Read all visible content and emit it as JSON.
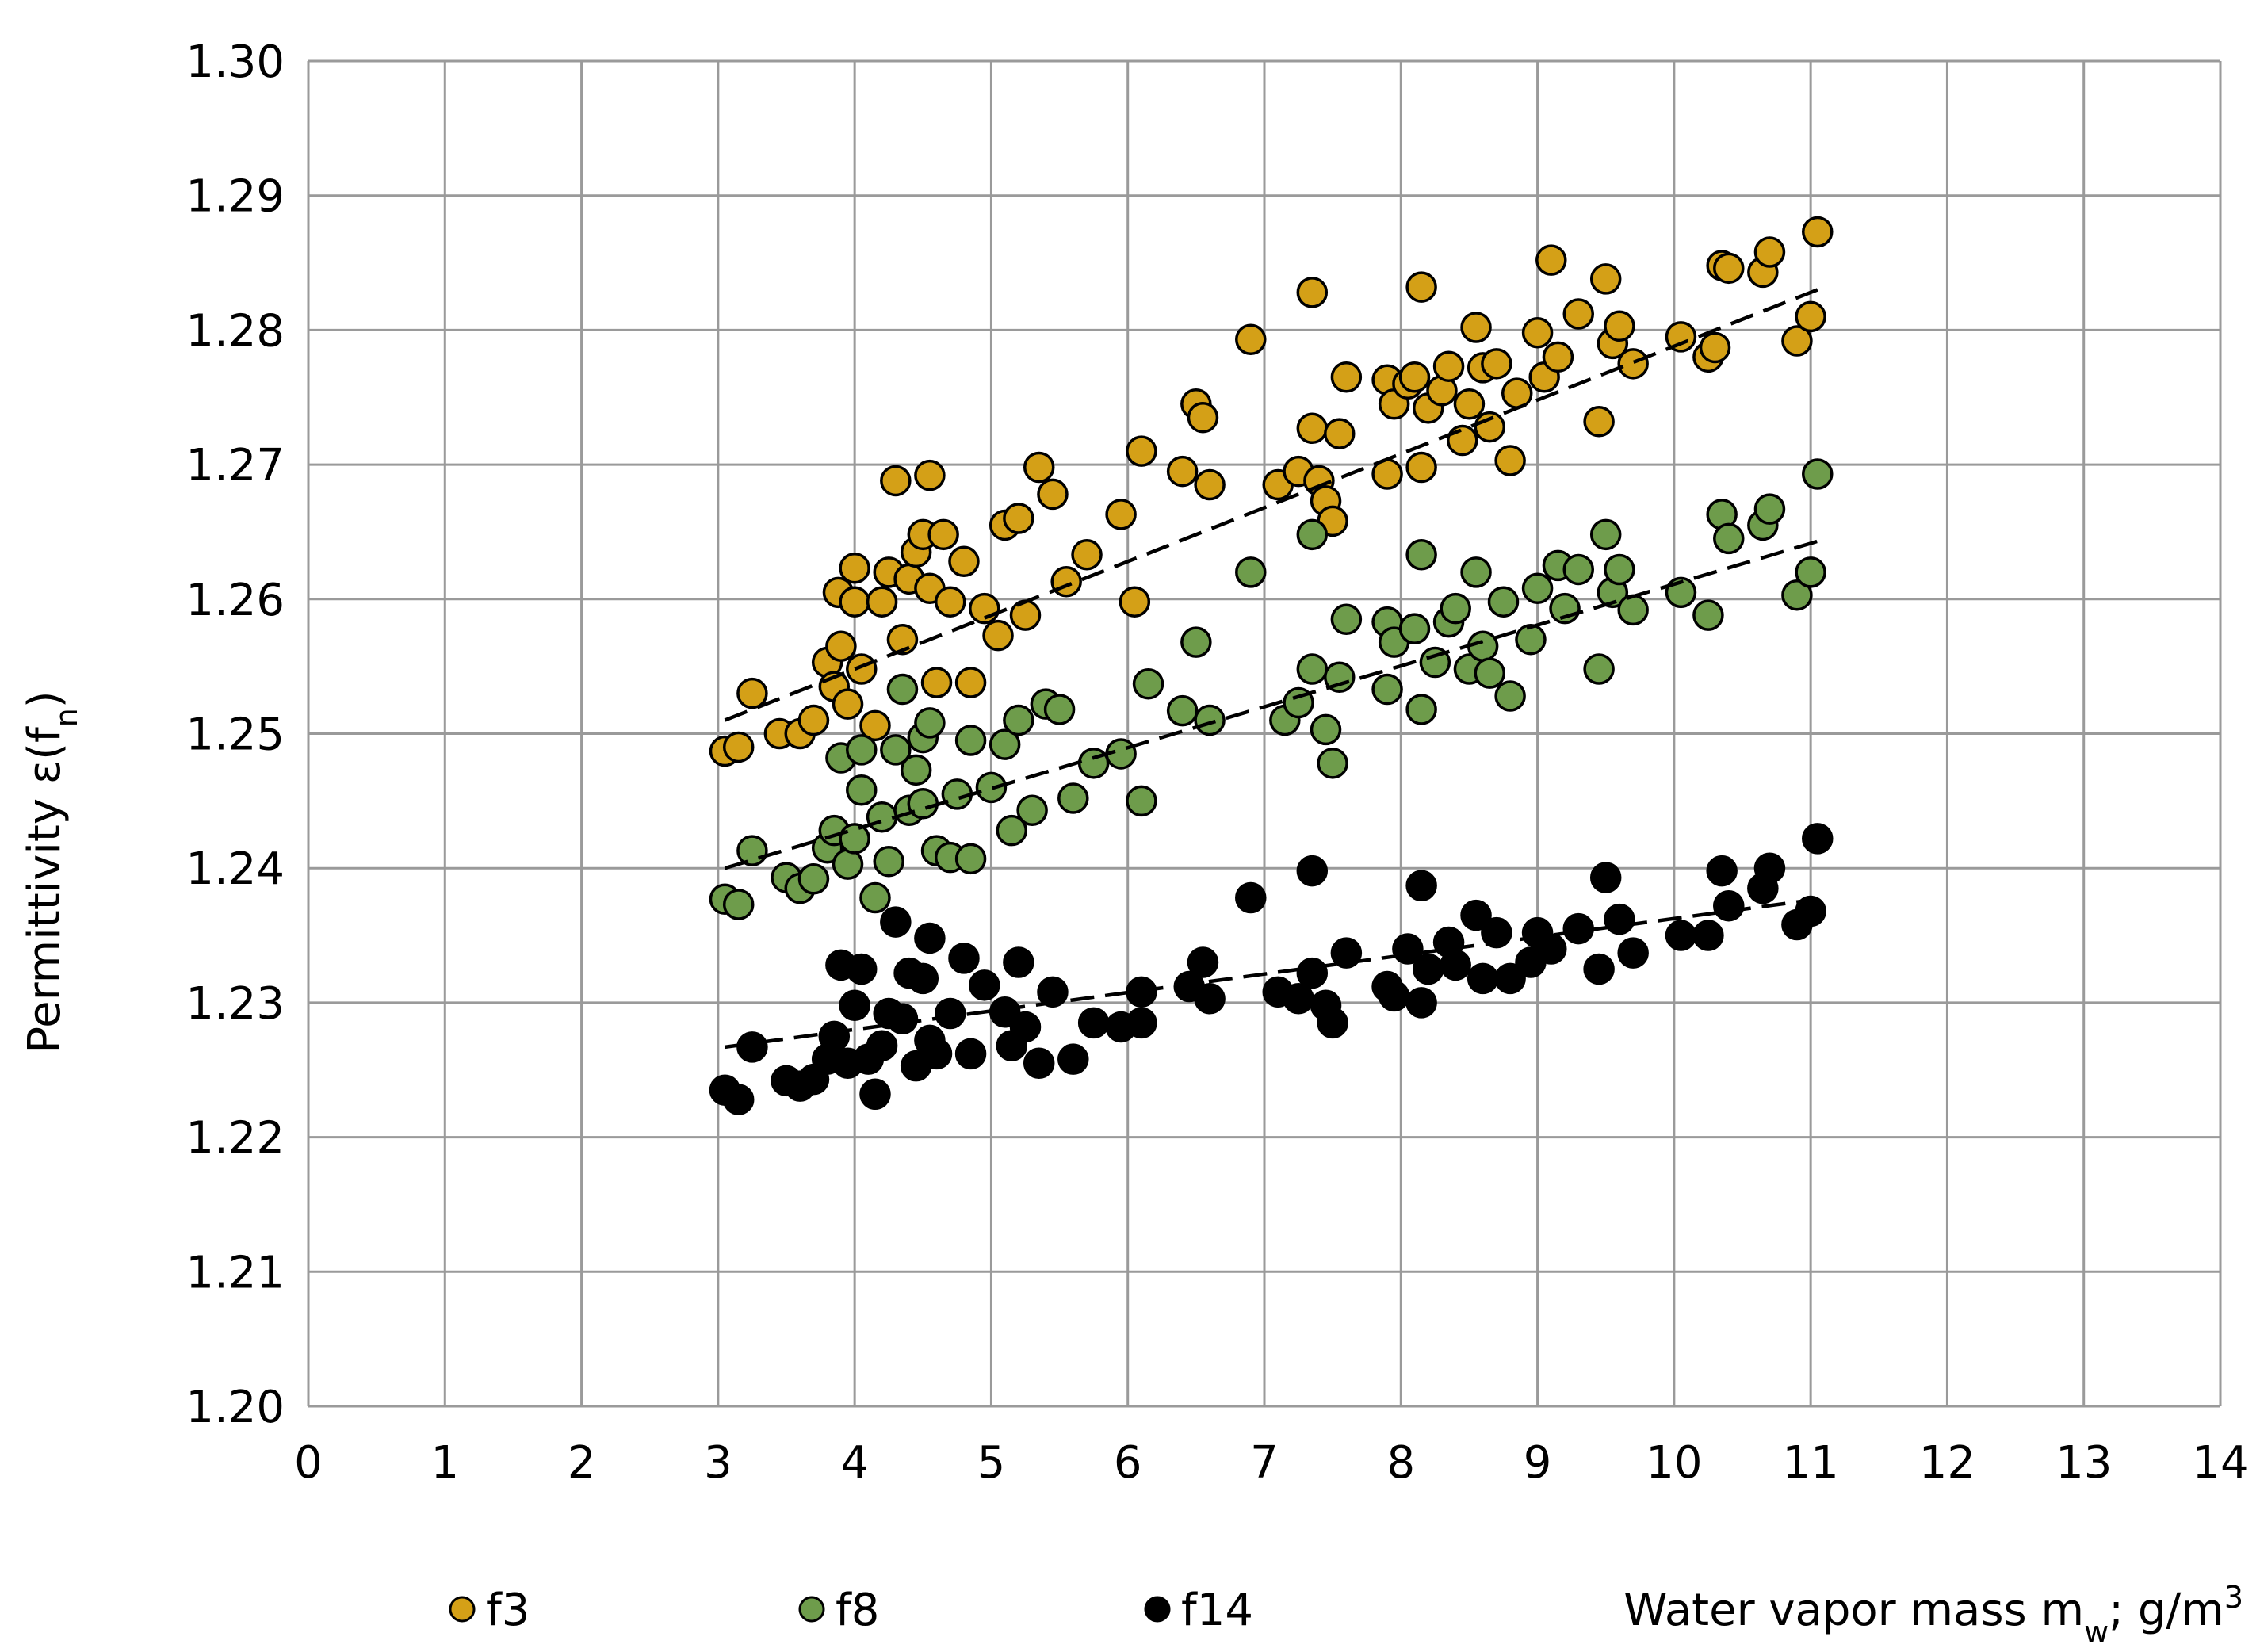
{
  "chart_data": {
    "type": "scatter",
    "ylabel": [
      "Permittivity ε(f",
      "n",
      ")"
    ],
    "xlabel": [
      "Water vapor mass m",
      "w",
      "; g/m",
      "3"
    ],
    "xlim": [
      0,
      14
    ],
    "xticks": [
      0,
      1,
      2,
      3,
      4,
      5,
      6,
      7,
      8,
      9,
      10,
      11,
      12,
      13,
      14
    ],
    "ylim": [
      1.2,
      1.3
    ],
    "yticks": [
      {
        "value": 1.2,
        "label": "1.20"
      },
      1.21,
      1.22,
      1.23,
      1.24,
      1.25,
      1.26,
      1.27,
      1.28,
      1.29,
      {
        "value": 1.3,
        "label": "1.30"
      }
    ],
    "grid": true,
    "legend": "bottom",
    "series": [
      {
        "name": "f3",
        "color": "#d4a017",
        "x": [
          3.05,
          3.15,
          3.25,
          3.45,
          3.6,
          3.7,
          3.8,
          3.85,
          3.88,
          3.9,
          3.95,
          4.0,
          4.0,
          4.05,
          4.15,
          4.2,
          4.25,
          4.3,
          4.35,
          4.4,
          4.45,
          4.5,
          4.55,
          4.55,
          4.6,
          4.65,
          4.7,
          4.8,
          4.85,
          4.95,
          5.05,
          5.1,
          5.2,
          5.25,
          5.35,
          5.45,
          5.55,
          5.7,
          5.95,
          6.05,
          6.1,
          6.4,
          6.5,
          6.55,
          6.6,
          6.9,
          7.1,
          7.25,
          7.35,
          7.35,
          7.4,
          7.45,
          7.5,
          7.55,
          7.6,
          7.9,
          7.95,
          7.9,
          8.05,
          8.1,
          8.15,
          8.15,
          8.2,
          8.3,
          8.35,
          8.45,
          8.5,
          8.55,
          8.6,
          8.65,
          8.7,
          8.8,
          8.85,
          9.0,
          9.05,
          9.1,
          9.15,
          9.3,
          9.45,
          9.5,
          9.55,
          9.6,
          9.7,
          10.05,
          10.25,
          10.3,
          10.35,
          10.4,
          10.65,
          10.7,
          10.9,
          11.0,
          11.05
        ],
        "values": [
          1.2487,
          1.249,
          1.253,
          1.25,
          1.25,
          1.251,
          1.2553,
          1.2535,
          1.2605,
          1.2565,
          1.2522,
          1.2623,
          1.2598,
          1.2548,
          1.2506,
          1.2598,
          1.262,
          1.2688,
          1.257,
          1.2615,
          1.2635,
          1.2648,
          1.2692,
          1.2608,
          1.2538,
          1.2648,
          1.2598,
          1.2628,
          1.2538,
          1.2593,
          1.2573,
          1.2655,
          1.266,
          1.2588,
          1.2698,
          1.2678,
          1.2613,
          1.2633,
          1.2663,
          1.2598,
          1.271,
          1.2695,
          1.2745,
          1.2735,
          1.2685,
          1.2793,
          1.2685,
          1.2695,
          1.2828,
          1.2727,
          1.2688,
          1.2673,
          1.2658,
          1.2723,
          1.2765,
          1.2763,
          1.2745,
          1.2693,
          1.276,
          1.2765,
          1.2832,
          1.2698,
          1.2742,
          1.2755,
          1.2773,
          1.2718,
          1.2745,
          1.2802,
          1.2772,
          1.2728,
          1.2775,
          1.2703,
          1.2753,
          1.2798,
          1.2765,
          1.2852,
          1.278,
          1.2812,
          1.2732,
          1.2838,
          1.279,
          1.2803,
          1.2775,
          1.2795,
          1.278,
          1.2787,
          1.2848,
          1.2846,
          1.2843,
          1.2858,
          1.2792,
          1.281,
          1.2873
        ],
        "trend": {
          "x": [
            3.05,
            11.05
          ],
          "values": [
            1.251,
            1.283
          ]
        }
      },
      {
        "name": "f8",
        "color": "#6e9c4b",
        "x": [
          3.05,
          3.15,
          3.25,
          3.5,
          3.6,
          3.7,
          3.8,
          3.85,
          3.9,
          3.95,
          4.0,
          4.05,
          4.05,
          4.15,
          4.2,
          4.25,
          4.3,
          4.35,
          4.4,
          4.45,
          4.5,
          4.5,
          4.55,
          4.6,
          4.7,
          4.75,
          4.85,
          4.85,
          5.0,
          5.1,
          5.15,
          5.2,
          5.3,
          5.4,
          5.5,
          5.6,
          5.75,
          5.95,
          6.1,
          6.15,
          6.4,
          6.5,
          6.6,
          6.9,
          7.15,
          7.25,
          7.35,
          7.35,
          7.45,
          7.5,
          7.55,
          7.6,
          7.9,
          7.95,
          7.9,
          8.1,
          8.15,
          8.15,
          8.25,
          8.35,
          8.4,
          8.5,
          8.55,
          8.6,
          8.65,
          8.75,
          8.8,
          8.95,
          9.0,
          9.15,
          9.2,
          9.3,
          9.45,
          9.5,
          9.55,
          9.6,
          9.7,
          10.05,
          10.25,
          10.35,
          10.4,
          10.65,
          10.7,
          10.9,
          11.0,
          11.05
        ],
        "values": [
          1.2377,
          1.2373,
          1.2413,
          1.2393,
          1.2385,
          1.2392,
          1.2415,
          1.2428,
          1.2482,
          1.2403,
          1.2422,
          1.2488,
          1.2458,
          1.2378,
          1.2438,
          1.2405,
          1.2488,
          1.2533,
          1.2443,
          1.2473,
          1.2497,
          1.2448,
          1.2508,
          1.2413,
          1.2408,
          1.2455,
          1.2495,
          1.2407,
          1.246,
          1.2492,
          1.2428,
          1.251,
          1.2443,
          1.2522,
          1.2518,
          1.2452,
          1.2478,
          1.2485,
          1.245,
          1.2537,
          1.2517,
          1.2568,
          1.251,
          1.262,
          1.251,
          1.2523,
          1.2648,
          1.2548,
          1.2503,
          1.2478,
          1.2542,
          1.2585,
          1.2583,
          1.2568,
          1.2533,
          1.2578,
          1.2633,
          1.2518,
          1.2553,
          1.2583,
          1.2593,
          1.2548,
          1.262,
          1.2565,
          1.2545,
          1.2598,
          1.2528,
          1.257,
          1.2608,
          1.2625,
          1.2593,
          1.2622,
          1.2548,
          1.2648,
          1.2605,
          1.2622,
          1.2592,
          1.2605,
          1.2588,
          1.2663,
          1.2645,
          1.2655,
          1.2667,
          1.2603,
          1.262,
          1.2693
        ],
        "trend": {
          "x": [
            3.05,
            11.05
          ],
          "values": [
            1.24,
            1.2643
          ]
        }
      },
      {
        "name": "f14",
        "color": "#000000",
        "x": [
          3.05,
          3.15,
          3.25,
          3.5,
          3.6,
          3.7,
          3.8,
          3.85,
          3.9,
          3.95,
          4.0,
          4.05,
          4.1,
          4.15,
          4.2,
          4.25,
          4.3,
          4.35,
          4.4,
          4.45,
          4.5,
          4.55,
          4.55,
          4.6,
          4.7,
          4.8,
          4.85,
          4.95,
          5.1,
          5.15,
          5.2,
          5.25,
          5.35,
          5.45,
          5.6,
          5.75,
          5.95,
          6.1,
          6.1,
          6.45,
          6.55,
          6.6,
          6.9,
          7.1,
          7.25,
          7.35,
          7.35,
          7.45,
          7.5,
          7.6,
          7.9,
          7.95,
          8.05,
          8.15,
          8.15,
          8.2,
          8.35,
          8.4,
          8.55,
          8.6,
          8.7,
          8.8,
          8.95,
          9.0,
          9.1,
          9.3,
          9.45,
          9.5,
          9.6,
          9.7,
          10.05,
          10.25,
          10.35,
          10.4,
          10.65,
          10.7,
          10.9,
          11.0,
          11.05
        ],
        "values": [
          1.2235,
          1.2228,
          1.2267,
          1.2242,
          1.2238,
          1.2243,
          1.2258,
          1.2275,
          1.2328,
          1.2255,
          1.2298,
          1.2325,
          1.2258,
          1.2232,
          1.2268,
          1.2292,
          1.236,
          1.2288,
          1.2322,
          1.2253,
          1.2318,
          1.2348,
          1.2272,
          1.2262,
          1.2292,
          1.2333,
          1.2262,
          1.2313,
          1.2293,
          1.2268,
          1.233,
          1.2282,
          1.2255,
          1.2308,
          1.2258,
          1.2285,
          1.2282,
          1.2308,
          1.2285,
          1.2312,
          1.233,
          1.2303,
          1.2378,
          1.2308,
          1.2303,
          1.2398,
          1.2322,
          1.2298,
          1.2285,
          1.2337,
          1.2312,
          1.2305,
          1.234,
          1.2387,
          1.23,
          1.2325,
          1.2345,
          1.2328,
          1.2365,
          1.2318,
          1.2352,
          1.2318,
          1.233,
          1.2352,
          1.234,
          1.2355,
          1.2325,
          1.2393,
          1.2362,
          1.2337,
          1.235,
          1.235,
          1.2398,
          1.2372,
          1.2385,
          1.24,
          1.2358,
          1.2368,
          1.2422
        ],
        "trend": {
          "x": [
            3.05,
            11.05
          ],
          "values": [
            1.2267,
            1.2377
          ]
        }
      }
    ]
  }
}
